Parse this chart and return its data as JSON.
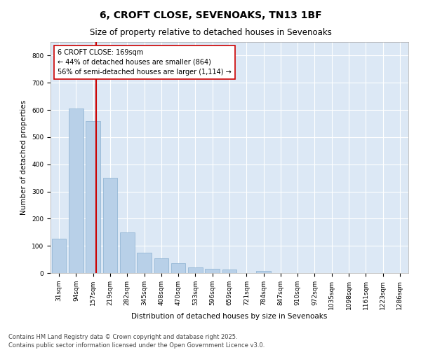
{
  "title": "6, CROFT CLOSE, SEVENOAKS, TN13 1BF",
  "subtitle": "Size of property relative to detached houses in Sevenoaks",
  "xlabel": "Distribution of detached houses by size in Sevenoaks",
  "ylabel": "Number of detached properties",
  "categories": [
    "31sqm",
    "94sqm",
    "157sqm",
    "219sqm",
    "282sqm",
    "345sqm",
    "408sqm",
    "470sqm",
    "533sqm",
    "596sqm",
    "659sqm",
    "721sqm",
    "784sqm",
    "847sqm",
    "910sqm",
    "972sqm",
    "1035sqm",
    "1098sqm",
    "1161sqm",
    "1223sqm",
    "1286sqm"
  ],
  "values": [
    125,
    605,
    560,
    350,
    150,
    75,
    55,
    35,
    20,
    15,
    12,
    0,
    8,
    0,
    0,
    0,
    0,
    0,
    0,
    0,
    0
  ],
  "bar_color": "#b8d0e8",
  "bar_edge_color": "#8ab0d0",
  "vline_color": "#cc0000",
  "annotation_text": "6 CROFT CLOSE: 169sqm\n← 44% of detached houses are smaller (864)\n56% of semi-detached houses are larger (1,114) →",
  "annotation_box_facecolor": "#ffffff",
  "annotation_box_edgecolor": "#cc0000",
  "ylim": [
    0,
    850
  ],
  "yticks": [
    0,
    100,
    200,
    300,
    400,
    500,
    600,
    700,
    800
  ],
  "fig_facecolor": "#ffffff",
  "axes_facecolor": "#dce8f5",
  "grid_color": "#ffffff",
  "footer_line1": "Contains HM Land Registry data © Crown copyright and database right 2025.",
  "footer_line2": "Contains public sector information licensed under the Open Government Licence v3.0.",
  "title_fontsize": 10,
  "subtitle_fontsize": 8.5,
  "axis_label_fontsize": 7.5,
  "tick_fontsize": 6.5,
  "annotation_fontsize": 7,
  "footer_fontsize": 6
}
